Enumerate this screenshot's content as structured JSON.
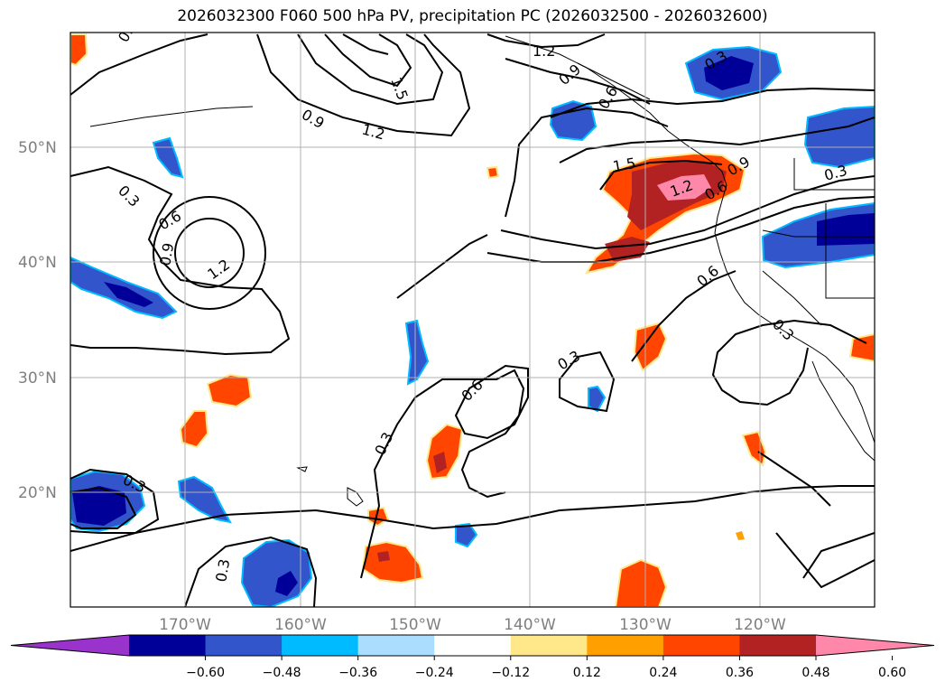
{
  "title": "2026032300 F060 500 hPa PV, precipitation PC (2026032500 - 2026032600)",
  "latitude_labels": [
    "50°N",
    "40°N",
    "30°N",
    "20°N"
  ],
  "longitude_labels": [
    "170°W",
    "160°W",
    "150°W",
    "140°W",
    "130°W",
    "120°W"
  ],
  "colorbar": {
    "ticks": [
      "−0.60",
      "−0.48",
      "−0.36",
      "−0.24",
      "−0.12",
      "0.12",
      "0.24",
      "0.36",
      "0.48",
      "0.60"
    ],
    "colors": [
      "#9933cc",
      "#000099",
      "#3355cc",
      "#00bbff",
      "#aaddff",
      "#ffffff",
      "#ffe88a",
      "#ffa000",
      "#ff4500",
      "#b22222",
      "#ff88aa"
    ]
  },
  "contour_labels": [
    "0.3",
    "0.3",
    "0.6",
    "0.9",
    "1.2",
    "1.2",
    "0.9",
    "1.5",
    "1.2",
    "0.9",
    "0.6",
    "0.3",
    "0.3",
    "1.5",
    "1.2",
    "0.9",
    "0.6",
    "0.3",
    "0.3",
    "0.6",
    "0.3",
    "0.3",
    "0.6",
    "0.3",
    "0.3",
    "0.3",
    "0.3"
  ],
  "colors": {
    "grid": "#b0b0b0",
    "contour": "#000000",
    "axis_label": "#7f7f7f"
  }
}
